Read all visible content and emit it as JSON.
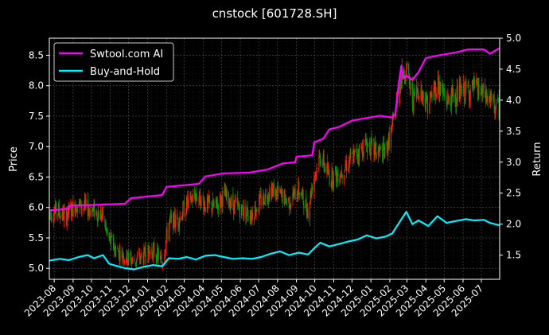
{
  "chart_data": {
    "type": "line",
    "title": "cnstock [601728.SH]",
    "xlabel": "",
    "ylabel_left": "Price",
    "ylabel_right": "Return",
    "grid": true,
    "legend_position": "top-left",
    "colors": {
      "background": "#000000",
      "axes_face": "#000000",
      "text": "#ffffff",
      "grid": "#555555",
      "candle_up": "#ff2200",
      "candle_down": "#009900",
      "strategy": "#ff00ff",
      "buy_hold": "#00f0ff"
    },
    "x_range": [
      "2023-07-24",
      "2025-07-31"
    ],
    "x_ticks": [
      "2023-08",
      "2023-09",
      "2023-10",
      "2023-11",
      "2023-12",
      "2024-01",
      "2024-02",
      "2024-03",
      "2024-04",
      "2024-05",
      "2024-06",
      "2024-07",
      "2024-08",
      "2024-09",
      "2024-10",
      "2024-11",
      "2024-12",
      "2025-01",
      "2025-02",
      "2025-03",
      "2025-04",
      "2025-05",
      "2025-06",
      "2025-07"
    ],
    "y_left": {
      "range": [
        4.82,
        8.78
      ],
      "ticks": [
        "5.0",
        "5.5",
        "6.0",
        "6.5",
        "7.0",
        "7.5",
        "8.0",
        "8.5"
      ]
    },
    "y_right": {
      "range": [
        1.11,
        5.0
      ],
      "ticks": [
        "1.5",
        "2.0",
        "2.5",
        "3.0",
        "3.5",
        "4.0",
        "4.5",
        "5.0"
      ]
    },
    "price_path": [
      [
        "2023-07-24",
        5.9
      ],
      [
        "2023-08-05",
        5.95
      ],
      [
        "2023-08-20",
        5.85
      ],
      [
        "2023-09-05",
        6.05
      ],
      [
        "2023-09-20",
        6.0
      ],
      [
        "2023-10-05",
        5.95
      ],
      [
        "2023-10-20",
        5.85
      ],
      [
        "2023-10-28",
        5.5
      ],
      [
        "2023-11-10",
        5.3
      ],
      [
        "2023-11-25",
        5.2
      ],
      [
        "2023-12-10",
        5.12
      ],
      [
        "2023-12-25",
        5.2
      ],
      [
        "2024-01-10",
        5.3
      ],
      [
        "2024-01-25",
        5.1
      ],
      [
        "2024-02-05",
        5.75
      ],
      [
        "2024-02-20",
        5.8
      ],
      [
        "2024-03-05",
        6.05
      ],
      [
        "2024-03-20",
        6.2
      ],
      [
        "2024-04-05",
        6.05
      ],
      [
        "2024-04-20",
        6.0
      ],
      [
        "2024-05-05",
        6.2
      ],
      [
        "2024-05-20",
        6.05
      ],
      [
        "2024-06-05",
        5.95
      ],
      [
        "2024-06-20",
        5.9
      ],
      [
        "2024-07-05",
        6.1
      ],
      [
        "2024-07-20",
        6.3
      ],
      [
        "2024-08-05",
        6.2
      ],
      [
        "2024-08-20",
        6.1
      ],
      [
        "2024-09-05",
        6.3
      ],
      [
        "2024-09-20",
        5.95
      ],
      [
        "2024-09-28",
        6.45
      ],
      [
        "2024-10-10",
        6.85
      ],
      [
        "2024-10-25",
        6.5
      ],
      [
        "2024-11-10",
        6.55
      ],
      [
        "2024-11-25",
        6.75
      ],
      [
        "2024-12-10",
        6.9
      ],
      [
        "2024-12-25",
        7.05
      ],
      [
        "2025-01-10",
        6.9
      ],
      [
        "2025-01-25",
        6.9
      ],
      [
        "2025-02-05",
        7.3
      ],
      [
        "2025-02-18",
        8.1
      ],
      [
        "2025-02-28",
        8.3
      ],
      [
        "2025-03-10",
        7.75
      ],
      [
        "2025-03-20",
        7.95
      ],
      [
        "2025-04-05",
        7.7
      ],
      [
        "2025-04-20",
        8.05
      ],
      [
        "2025-05-05",
        7.75
      ],
      [
        "2025-05-20",
        7.85
      ],
      [
        "2025-06-05",
        7.9
      ],
      [
        "2025-06-20",
        7.95
      ],
      [
        "2025-07-05",
        7.85
      ],
      [
        "2025-07-15",
        7.75
      ],
      [
        "2025-07-31",
        7.6
      ]
    ],
    "series": [
      {
        "name": "Swtool.com AI",
        "axis": "right",
        "color": "#ff00ff",
        "points": [
          [
            "2023-07-24",
            2.22
          ],
          [
            "2023-08-25",
            2.25
          ],
          [
            "2023-08-26",
            2.3
          ],
          [
            "2023-10-05",
            2.31
          ],
          [
            "2023-11-25",
            2.33
          ],
          [
            "2023-12-05",
            2.42
          ],
          [
            "2024-01-25",
            2.47
          ],
          [
            "2024-02-01",
            2.6
          ],
          [
            "2024-03-25",
            2.65
          ],
          [
            "2024-04-05",
            2.77
          ],
          [
            "2024-05-05",
            2.82
          ],
          [
            "2024-06-15",
            2.83
          ],
          [
            "2024-07-15",
            2.88
          ],
          [
            "2024-08-10",
            2.98
          ],
          [
            "2024-08-30",
            3.0
          ],
          [
            "2024-09-01",
            3.09
          ],
          [
            "2024-09-27",
            3.11
          ],
          [
            "2024-09-30",
            3.32
          ],
          [
            "2024-10-15",
            3.38
          ],
          [
            "2024-10-25",
            3.53
          ],
          [
            "2024-11-10",
            3.57
          ],
          [
            "2024-12-01",
            3.67
          ],
          [
            "2025-01-15",
            3.75
          ],
          [
            "2025-02-05",
            3.72
          ],
          [
            "2025-02-10",
            3.78
          ],
          [
            "2025-02-16",
            4.3
          ],
          [
            "2025-02-20",
            4.56
          ],
          [
            "2025-02-23",
            4.35
          ],
          [
            "2025-02-28",
            4.4
          ],
          [
            "2025-03-10",
            4.33
          ],
          [
            "2025-03-20",
            4.45
          ],
          [
            "2025-04-01",
            4.68
          ],
          [
            "2025-04-20",
            4.72
          ],
          [
            "2025-05-20",
            4.77
          ],
          [
            "2025-06-10",
            4.82
          ],
          [
            "2025-07-05",
            4.82
          ],
          [
            "2025-07-15",
            4.75
          ],
          [
            "2025-07-31",
            4.84
          ]
        ]
      },
      {
        "name": "Buy-and-Hold",
        "axis": "right",
        "color": "#00f0ff",
        "points": [
          [
            "2023-07-24",
            1.41
          ],
          [
            "2023-08-10",
            1.44
          ],
          [
            "2023-08-25",
            1.42
          ],
          [
            "2023-09-10",
            1.47
          ],
          [
            "2023-09-25",
            1.5
          ],
          [
            "2023-10-05",
            1.45
          ],
          [
            "2023-10-20",
            1.5
          ],
          [
            "2023-10-30",
            1.36
          ],
          [
            "2023-11-10",
            1.33
          ],
          [
            "2023-11-25",
            1.29
          ],
          [
            "2023-12-10",
            1.27
          ],
          [
            "2023-12-25",
            1.31
          ],
          [
            "2024-01-10",
            1.34
          ],
          [
            "2024-01-25",
            1.32
          ],
          [
            "2024-02-05",
            1.45
          ],
          [
            "2024-02-20",
            1.44
          ],
          [
            "2024-03-05",
            1.47
          ],
          [
            "2024-03-20",
            1.43
          ],
          [
            "2024-04-05",
            1.49
          ],
          [
            "2024-04-20",
            1.5
          ],
          [
            "2024-05-05",
            1.47
          ],
          [
            "2024-05-20",
            1.44
          ],
          [
            "2024-06-05",
            1.45
          ],
          [
            "2024-06-20",
            1.44
          ],
          [
            "2024-07-05",
            1.47
          ],
          [
            "2024-07-20",
            1.52
          ],
          [
            "2024-08-05",
            1.56
          ],
          [
            "2024-08-20",
            1.5
          ],
          [
            "2024-09-05",
            1.54
          ],
          [
            "2024-09-20",
            1.51
          ],
          [
            "2024-10-01",
            1.62
          ],
          [
            "2024-10-10",
            1.7
          ],
          [
            "2024-10-25",
            1.64
          ],
          [
            "2024-11-10",
            1.68
          ],
          [
            "2024-11-25",
            1.72
          ],
          [
            "2024-12-10",
            1.75
          ],
          [
            "2024-12-25",
            1.82
          ],
          [
            "2025-01-10",
            1.77
          ],
          [
            "2025-01-25",
            1.8
          ],
          [
            "2025-02-05",
            1.85
          ],
          [
            "2025-02-18",
            2.05
          ],
          [
            "2025-02-28",
            2.2
          ],
          [
            "2025-03-10",
            2.0
          ],
          [
            "2025-03-20",
            2.06
          ],
          [
            "2025-04-05",
            1.97
          ],
          [
            "2025-04-20",
            2.13
          ],
          [
            "2025-05-05",
            2.02
          ],
          [
            "2025-05-20",
            2.05
          ],
          [
            "2025-06-05",
            2.08
          ],
          [
            "2025-06-20",
            2.06
          ],
          [
            "2025-07-05",
            2.07
          ],
          [
            "2025-07-15",
            2.02
          ],
          [
            "2025-07-31",
            1.98
          ]
        ]
      }
    ]
  }
}
